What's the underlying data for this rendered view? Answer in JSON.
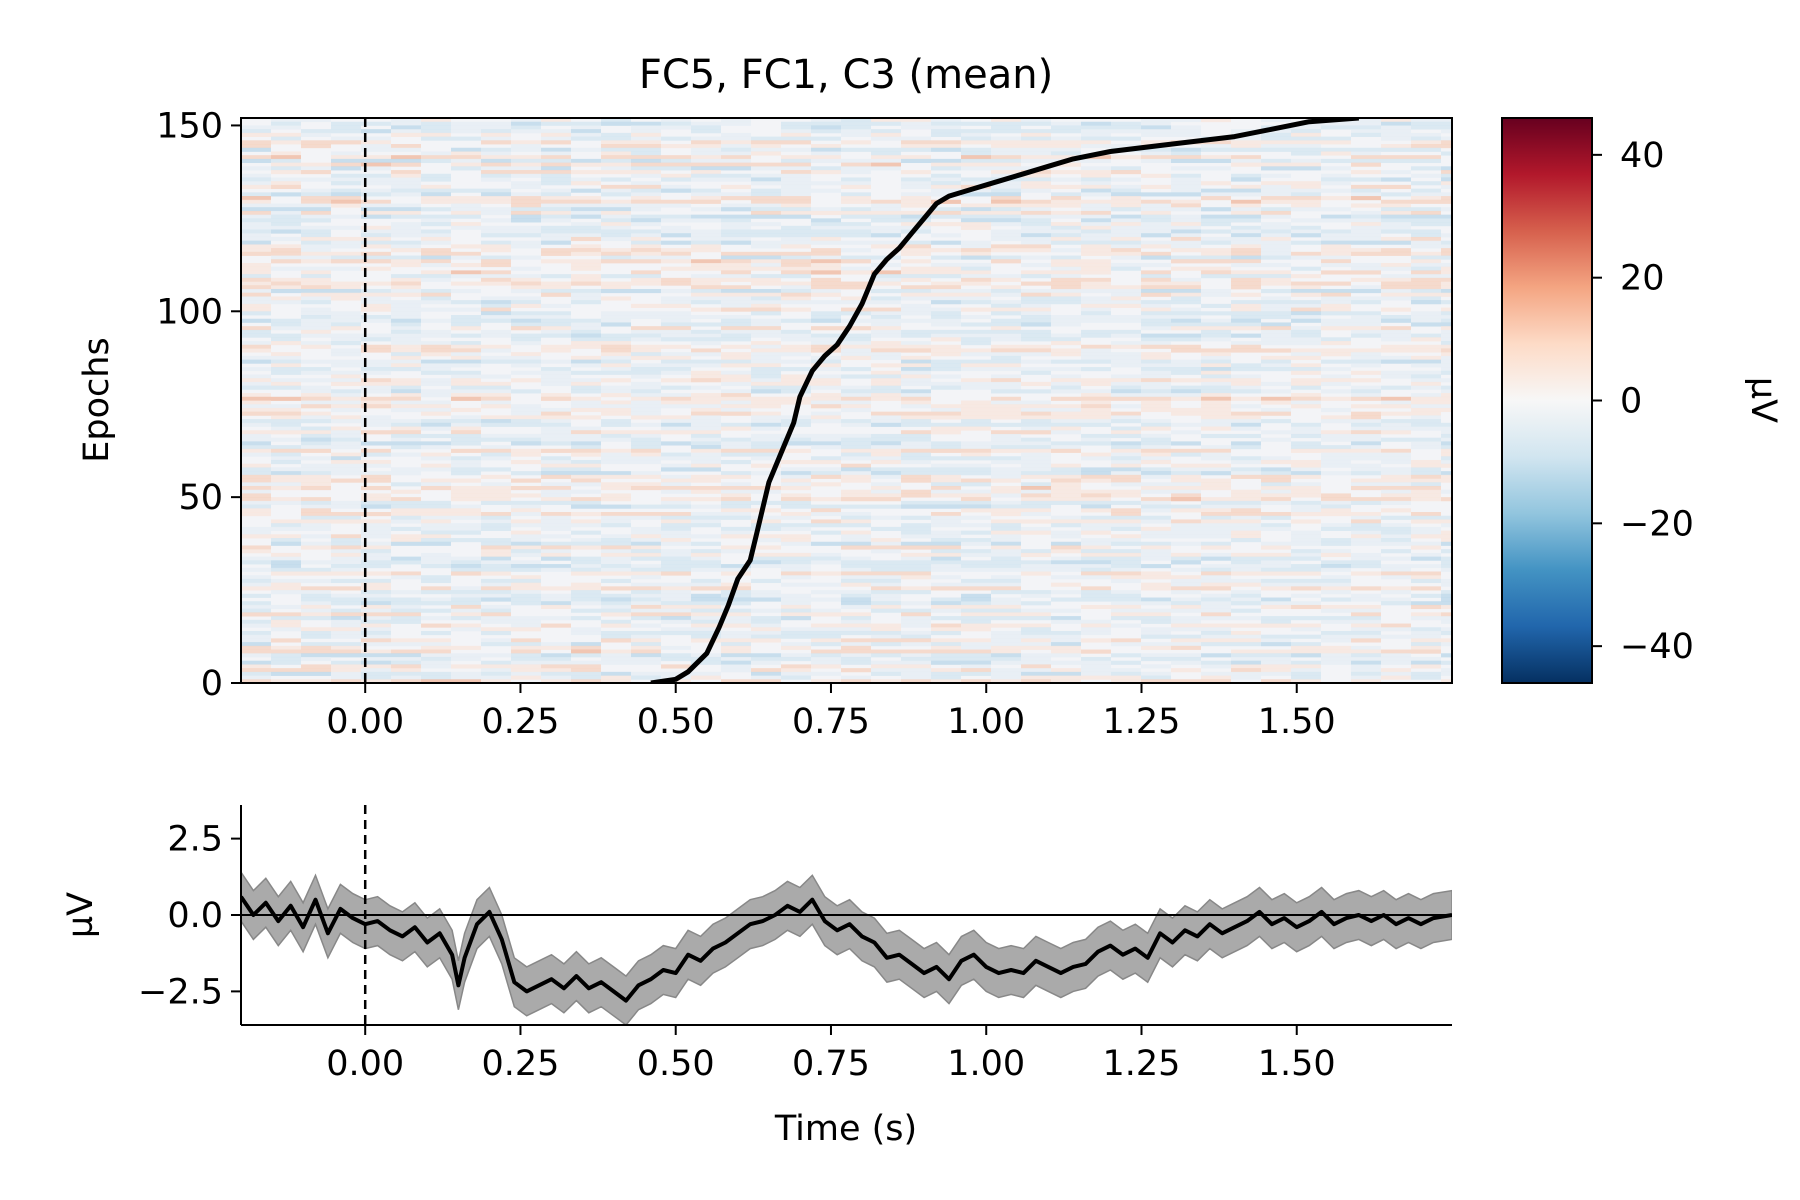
{
  "figure": {
    "title": "FC5, FC1, C3 (mean)"
  },
  "chart_data": [
    {
      "type": "heatmap",
      "title": "FC5, FC1, C3 (mean)",
      "xlabel": "",
      "ylabel": "Epochs",
      "xlim": [
        -0.2,
        1.75
      ],
      "ylim": [
        0,
        152
      ],
      "x_ticks": [
        0.0,
        0.25,
        0.5,
        0.75,
        1.0,
        1.25,
        1.5
      ],
      "x_tick_labels": [
        "0.00",
        "0.25",
        "0.50",
        "0.75",
        "1.00",
        "1.25",
        "1.50"
      ],
      "y_ticks": [
        0,
        50,
        100,
        150
      ],
      "y_tick_labels": [
        "0",
        "50",
        "100",
        "150"
      ],
      "colormap": "RdBu_r",
      "color_range": [
        -46,
        46
      ],
      "event_marker_time": 0.0,
      "event_marker_style": "dashed",
      "overlay_line": {
        "name": "",
        "description_units": "time (s) vs epoch",
        "x": [
          0.46,
          0.5,
          0.52,
          0.55,
          0.57,
          0.585,
          0.6,
          0.62,
          0.63,
          0.64,
          0.65,
          0.67,
          0.69,
          0.7,
          0.72,
          0.74,
          0.76,
          0.78,
          0.8,
          0.82,
          0.84,
          0.86,
          0.88,
          0.9,
          0.92,
          0.94,
          0.98,
          1.02,
          1.06,
          1.1,
          1.14,
          1.2,
          1.3,
          1.4,
          1.46,
          1.52,
          1.6
        ],
        "y": [
          0,
          1,
          3,
          8,
          15,
          21,
          28,
          33,
          40,
          47,
          54,
          62,
          70,
          77,
          84,
          88,
          91,
          96,
          102,
          110,
          114,
          117,
          121,
          125,
          129,
          131,
          133,
          135,
          137,
          139,
          141,
          143,
          145,
          147,
          149,
          151,
          152
        ]
      },
      "colorbar": {
        "label": "µV",
        "ticks": [
          -40,
          -20,
          0,
          20,
          40
        ],
        "tick_labels": [
          "−40",
          "−20",
          "0",
          "20",
          "40"
        ],
        "range": [
          -46,
          46
        ]
      }
    },
    {
      "type": "line",
      "title": "",
      "xlabel": "Time (s)",
      "ylabel": "µV",
      "xlim": [
        -0.2,
        1.75
      ],
      "ylim": [
        -3.6,
        3.6
      ],
      "x_ticks": [
        0.0,
        0.25,
        0.5,
        0.75,
        1.0,
        1.25,
        1.5
      ],
      "x_tick_labels": [
        "0.00",
        "0.25",
        "0.50",
        "0.75",
        "1.00",
        "1.25",
        "1.50"
      ],
      "y_ticks": [
        -2.5,
        0.0,
        2.5
      ],
      "y_tick_labels": [
        "−2.5",
        "0.0",
        "2.5"
      ],
      "zero_line": true,
      "event_marker_time": 0.0,
      "band_halfwidth": 0.8,
      "series": [
        {
          "name": "",
          "x": [
            -0.2,
            -0.18,
            -0.16,
            -0.14,
            -0.12,
            -0.1,
            -0.08,
            -0.06,
            -0.04,
            -0.02,
            0.0,
            0.02,
            0.04,
            0.06,
            0.08,
            0.1,
            0.12,
            0.14,
            0.15,
            0.16,
            0.18,
            0.2,
            0.22,
            0.24,
            0.26,
            0.28,
            0.3,
            0.32,
            0.34,
            0.36,
            0.38,
            0.4,
            0.42,
            0.44,
            0.46,
            0.48,
            0.5,
            0.52,
            0.54,
            0.56,
            0.58,
            0.6,
            0.62,
            0.64,
            0.66,
            0.68,
            0.7,
            0.72,
            0.74,
            0.76,
            0.78,
            0.8,
            0.82,
            0.84,
            0.86,
            0.88,
            0.9,
            0.92,
            0.94,
            0.96,
            0.98,
            1.0,
            1.02,
            1.04,
            1.06,
            1.08,
            1.1,
            1.12,
            1.14,
            1.16,
            1.18,
            1.2,
            1.22,
            1.24,
            1.26,
            1.28,
            1.3,
            1.32,
            1.34,
            1.36,
            1.38,
            1.4,
            1.42,
            1.44,
            1.46,
            1.48,
            1.5,
            1.52,
            1.54,
            1.56,
            1.58,
            1.6,
            1.62,
            1.64,
            1.66,
            1.68,
            1.7,
            1.72,
            1.75
          ],
          "values": [
            0.6,
            0.0,
            0.4,
            -0.2,
            0.3,
            -0.4,
            0.5,
            -0.6,
            0.2,
            -0.1,
            -0.3,
            -0.2,
            -0.5,
            -0.7,
            -0.4,
            -0.9,
            -0.6,
            -1.3,
            -2.3,
            -1.4,
            -0.3,
            0.1,
            -0.8,
            -2.2,
            -2.5,
            -2.3,
            -2.1,
            -2.4,
            -2.0,
            -2.4,
            -2.2,
            -2.5,
            -2.8,
            -2.3,
            -2.1,
            -1.8,
            -1.9,
            -1.3,
            -1.5,
            -1.1,
            -0.9,
            -0.6,
            -0.3,
            -0.2,
            0.0,
            0.3,
            0.1,
            0.5,
            -0.2,
            -0.5,
            -0.3,
            -0.7,
            -0.9,
            -1.4,
            -1.3,
            -1.6,
            -1.9,
            -1.7,
            -2.1,
            -1.5,
            -1.3,
            -1.7,
            -1.9,
            -1.8,
            -1.9,
            -1.5,
            -1.7,
            -1.9,
            -1.7,
            -1.6,
            -1.2,
            -1.0,
            -1.3,
            -1.1,
            -1.4,
            -0.6,
            -0.9,
            -0.5,
            -0.7,
            -0.3,
            -0.6,
            -0.4,
            -0.2,
            0.1,
            -0.3,
            -0.1,
            -0.4,
            -0.2,
            0.1,
            -0.3,
            -0.1,
            0.0,
            -0.2,
            0.0,
            -0.3,
            -0.1,
            -0.3,
            -0.1,
            0.0
          ]
        }
      ]
    }
  ]
}
